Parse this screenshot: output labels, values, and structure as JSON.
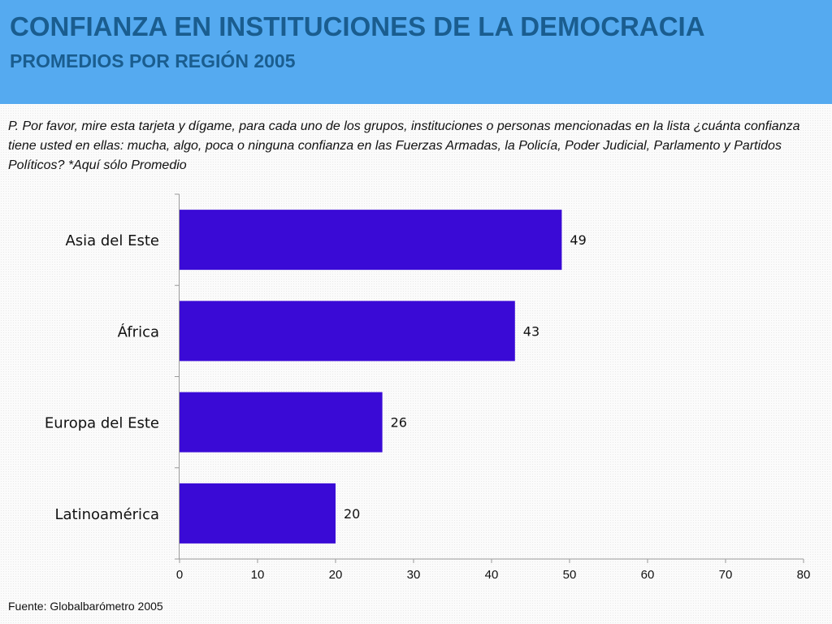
{
  "header": {
    "title": "CONFIANZA EN INSTITUCIONES DE LA DEMOCRACIA",
    "subtitle": "PROMEDIOS POR REGIÓN 2005"
  },
  "question": "P. Por favor, mire esta tarjeta y dígame, para cada uno de los grupos, instituciones o personas mencionadas en la lista ¿cuánta confianza tiene usted en ellas: mucha, algo, poca o ninguna confianza en las Fuerzas Armadas, la Policía, Poder Judicial, Parlamento y Partidos Políticos? *Aquí sólo Promedio",
  "source": "Fuente: Globalbarómetro 2005",
  "colors": {
    "header_bg": "#55aaf0",
    "title": "#1a5d8f",
    "bar": "#3a0ad6"
  },
  "chart_data": {
    "type": "bar",
    "orientation": "horizontal",
    "categories": [
      "Asia del Este",
      "África",
      "Europa del Este",
      "Latinoamérica"
    ],
    "values": [
      49,
      43,
      26,
      20
    ],
    "data_labels": [
      "49",
      "43",
      "26",
      "20"
    ],
    "xlim": [
      0,
      80
    ],
    "xticks": [
      0,
      10,
      20,
      30,
      40,
      50,
      60,
      70,
      80
    ],
    "xtick_labels": [
      "0",
      "10",
      "20",
      "30",
      "40",
      "50",
      "60",
      "70",
      "80"
    ],
    "grid": false,
    "legend": "none"
  }
}
